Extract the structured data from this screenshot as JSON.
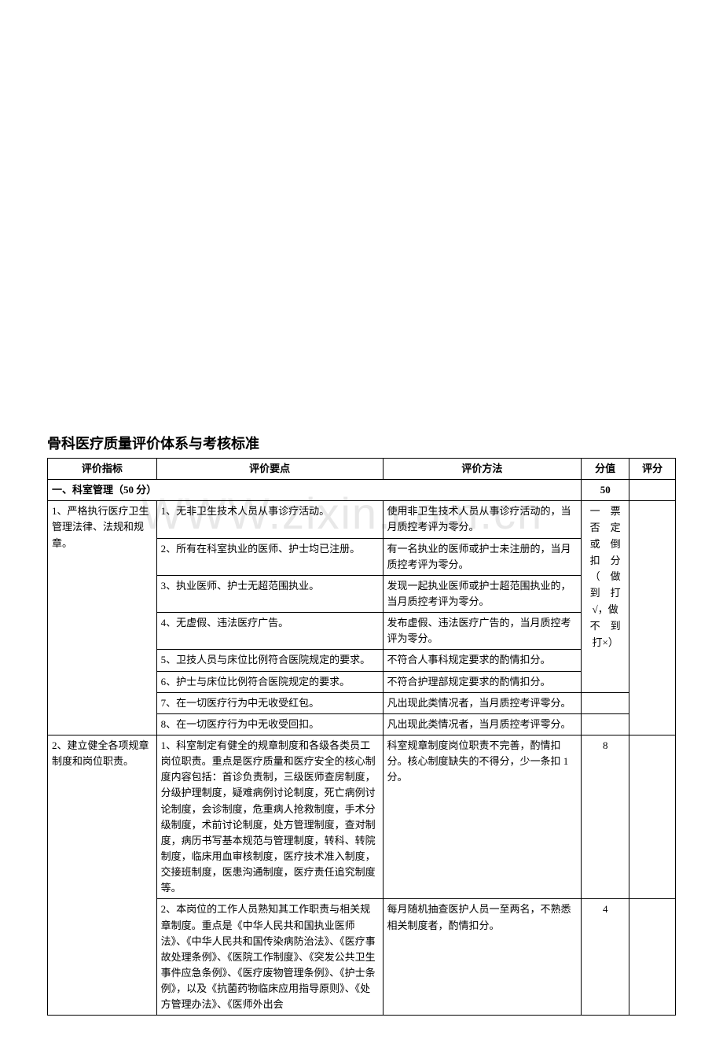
{
  "watermark": "WWW.zixin.com.cn",
  "title": "骨科医疗质量评价体系与考核标准",
  "headers": {
    "indicator": "评价指标",
    "points": "评价要点",
    "method": "评价方法",
    "score": "分值",
    "rating": "评分"
  },
  "section1": {
    "title": "一、科室管理（50 分）",
    "score": "50"
  },
  "row1": {
    "indicator": "1、严格执行医疗卫生管理法律、法规和规章。",
    "sub1": {
      "point": "1、无非卫生技术人员从事诊疗活动。",
      "method": "使用非卫生技术人员从事诊疗活动的，当月质控考评为零分。"
    },
    "sub2": {
      "point": "2、所有在科室执业的医师、护士均已注册。",
      "method": "有一名执业的医师或护士未注册的，当月质控考评为零分。"
    },
    "sub3": {
      "point": "3、执业医师、护士无超范围执业。",
      "method": "发现一起执业医师或护士超范围执业的，当月质控考评为零分。"
    },
    "sub4": {
      "point": "4、无虚假、违法医疗广告。",
      "method": "发布虚假、违法医疗广告的，当月质控考评为零分。"
    },
    "sub5": {
      "point": "5、卫技人员与床位比例符合医院规定的要求。",
      "method": "不符合人事科规定要求的酌情扣分。"
    },
    "sub6": {
      "point": "6、护士与床位比例符合医院规定的要求。",
      "method": "不符合护理部规定要求的酌情扣分。"
    },
    "sub7": {
      "point": "7、在一切医疗行为中无收受红包。",
      "method": "凡出现此类情况者，当月质控考评零分。"
    },
    "sub8": {
      "point": "8、在一切医疗行为中无收受回扣。",
      "method": "凡出现此类情况者，当月质控考评零分。"
    },
    "score_note": "一　票\n否　定\n或　倒\n扣　分\n（　做\n到　打\n√，做\n不　到\n打×）"
  },
  "row2": {
    "indicator": "2、建立健全各项规章制度和岗位职责。",
    "sub1": {
      "point": "1、科室制定有健全的规章制度和各级各类员工岗位职责。重点是医疗质量和医疗安全的核心制度内容包括：首诊负责制，三级医师查房制度，分级护理制度，疑难病例讨论制度，死亡病例讨论制度，会诊制度，危重病人抢救制度，手术分级制度，术前讨论制度，处方管理制度，查对制度，病历书写基本规范与管理制度，转科、转院制度，临床用血审核制度，医疗技术准入制度，交接班制度，医患沟通制度，医疗责任追究制度等。",
      "method": "科室规章制度岗位职责不完善，酌情扣分。核心制度缺失的不得分，少一条扣 1 分。",
      "score": "8"
    },
    "sub2": {
      "point": "2、本岗位的工作人员熟知其工作职责与相关规章制度。重点是《中华人民共和国执业医师法》、《中华人民共和国传染病防治法》、《医疗事故处理条例》、《医院工作制度》、《突发公共卫生事件应急条例》、《医疗废物管理条例》、《护士条例》，以及《抗菌药物临床应用指导原则》、《处方管理办法》、《医师外出会",
      "method": "每月随机抽查医护人员一至两名，不熟悉相关制度者，酌情扣分。",
      "score": "4"
    }
  }
}
